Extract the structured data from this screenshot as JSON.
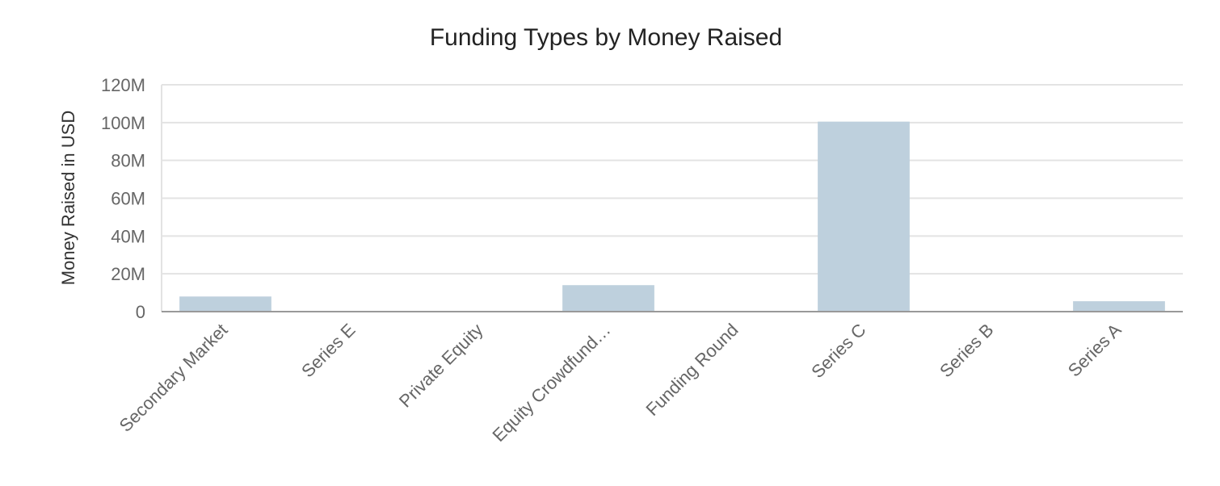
{
  "chart_data": {
    "type": "bar",
    "title": "Funding Types by Money Raised",
    "xlabel": "",
    "ylabel": "Money Raised in USD",
    "ylim": [
      0,
      120000000
    ],
    "y_ticks": [
      {
        "value": 0,
        "label": "0"
      },
      {
        "value": 20000000,
        "label": "20M"
      },
      {
        "value": 40000000,
        "label": "40M"
      },
      {
        "value": 60000000,
        "label": "60M"
      },
      {
        "value": 80000000,
        "label": "80M"
      },
      {
        "value": 100000000,
        "label": "100M"
      },
      {
        "value": 120000000,
        "label": "120M"
      }
    ],
    "categories": [
      "Secondary Market",
      "Series E",
      "Private Equity",
      "Equity Crowdfund…",
      "Funding Round",
      "Series C",
      "Series B",
      "Series A"
    ],
    "values": [
      8000000,
      0,
      0,
      14000000,
      0,
      100500000,
      0,
      5500000
    ],
    "grid": true,
    "colors": {
      "bar": "#bed0dd",
      "grid": "#e3e3e3",
      "axis": "#999999"
    }
  }
}
